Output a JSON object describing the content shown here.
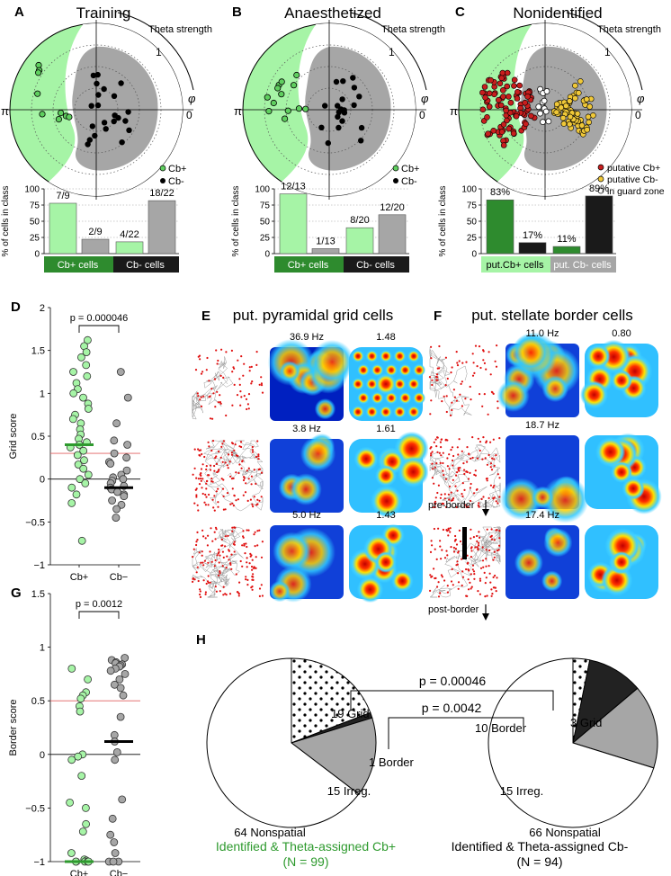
{
  "panels": {
    "A": {
      "letter": "A",
      "title": "Training",
      "theta": "Theta strength",
      "one": "1",
      "phi": "φ",
      "pi": "π",
      "zero": "0",
      "legend": [
        "Cb+",
        "Cb-"
      ],
      "ylabel": "% of cells in class",
      "bar_labels": [
        "7/9",
        "2/9",
        "4/22",
        "18/22"
      ],
      "groups": [
        "Cb+ cells",
        "Cb- cells"
      ]
    },
    "B": {
      "letter": "B",
      "title": "Anaesthetized",
      "theta": "Theta strength",
      "one": "1",
      "phi": "φ",
      "pi": "π",
      "zero": "0",
      "legend": [
        "Cb+",
        "Cb-"
      ],
      "ylabel": "% of cells in class",
      "bar_labels": [
        "12/13",
        "1/13",
        "8/20",
        "12/20"
      ],
      "groups": [
        "Cb+ cells",
        "Cb- cells"
      ]
    },
    "C": {
      "letter": "C",
      "title": "Nonidentified",
      "theta": "Theta strength",
      "one": "1",
      "phi": "φ",
      "pi": "π",
      "zero": "0",
      "legend": [
        "putative Cb+",
        "putative Cb-",
        "in guard zone"
      ],
      "ylabel": "% of cells in class",
      "bar_labels": [
        "83%",
        "17%",
        "11%",
        "89%"
      ],
      "groups": [
        "put.Cb+ cells",
        "put. Cb- cells"
      ]
    },
    "D": {
      "letter": "D",
      "ylabel": "Grid score",
      "pval": "p = 0.000046",
      "xcats": [
        "Cb+",
        "Cb−"
      ],
      "yticks": [
        "2",
        "1.5",
        "1",
        "0.5",
        "0",
        "−0.5",
        "−1"
      ]
    },
    "E": {
      "letter": "E",
      "title": "put. pyramidal grid cells",
      "rows": [
        {
          "hz": "36.9 Hz",
          "score": "1.48"
        },
        {
          "hz": "3.8 Hz",
          "score": "1.61"
        },
        {
          "hz": "5.0 Hz",
          "score": "1.43"
        }
      ]
    },
    "F": {
      "letter": "F",
      "title": "put. stellate border cells",
      "pre": "pre-border",
      "post": "post-border",
      "rows": [
        {
          "hz": "11.0 Hz",
          "score": "0.80"
        },
        {
          "hz": "18.7 Hz",
          "score": ""
        },
        {
          "hz": "17.4 Hz",
          "score": ""
        }
      ]
    },
    "G": {
      "letter": "G",
      "ylabel": "Border score",
      "pval": "p = 0.0012",
      "xcats": [
        "Cb+",
        "Cb−"
      ],
      "yticks": [
        "1.5",
        "1",
        "0.5",
        "0",
        "−0.5",
        "−1"
      ]
    },
    "H": {
      "letter": "H",
      "p1": "p = 0.00046",
      "p2": "p = 0.0042",
      "left": {
        "grid": "19 Grid",
        "border": "1 Border",
        "irreg": "15 Irreg.",
        "non": "64 Nonspatial",
        "caption": "Identified & Theta-assigned Cb+",
        "n": "(N = 99)"
      },
      "right": {
        "grid": "3 Grid",
        "border": "10 Border",
        "irreg": "15 Irreg.",
        "non": "66 Nonspatial",
        "caption": "Identified & Theta-assigned Cb-",
        "n": "(N = 94)"
      }
    }
  },
  "chart_data": [
    {
      "type": "bar",
      "panel": "A",
      "categories": [
        "Cb+ grid",
        "Cb+ other",
        "Cb- grid",
        "Cb- other"
      ],
      "values": [
        77.8,
        22.2,
        18.2,
        81.8
      ],
      "ylim": [
        0,
        100
      ],
      "yticks": [
        0,
        25,
        50,
        75,
        100
      ]
    },
    {
      "type": "bar",
      "panel": "B",
      "categories": [
        "Cb+ a",
        "Cb+ b",
        "Cb- a",
        "Cb- b"
      ],
      "values": [
        92.3,
        7.7,
        40,
        60
      ],
      "ylim": [
        0,
        100
      ],
      "yticks": [
        0,
        25,
        50,
        75,
        100
      ]
    },
    {
      "type": "bar",
      "panel": "C",
      "categories": [
        "put.Cb+ a",
        "put.Cb+ b",
        "put.Cb- a",
        "put.Cb- b"
      ],
      "values": [
        83,
        17,
        11,
        89
      ],
      "ylim": [
        0,
        100
      ],
      "yticks": [
        0,
        25,
        50,
        75,
        100
      ]
    },
    {
      "type": "scatter",
      "panel": "D",
      "ylim": [
        -1,
        2
      ],
      "threshold": 0.3,
      "series": [
        {
          "name": "Cb+",
          "median": 0.4,
          "values": [
            1.62,
            1.55,
            1.48,
            1.42,
            1.33,
            1.25,
            1.2,
            1.12,
            1.05,
            1.0,
            0.95,
            0.88,
            0.82,
            0.75,
            0.7,
            0.65,
            0.58,
            0.52,
            0.47,
            0.43,
            0.4,
            0.37,
            0.33,
            0.28,
            0.22,
            0.17,
            0.12,
            0.05,
            0.0,
            -0.05,
            -0.1,
            -0.18,
            -0.28,
            -0.72
          ]
        },
        {
          "name": "Cb−",
          "median": -0.1,
          "values": [
            1.25,
            0.95,
            0.65,
            0.45,
            0.4,
            0.3,
            0.25,
            0.2,
            0.18,
            0.1,
            0.05,
            0.02,
            0.0,
            -0.02,
            -0.05,
            -0.08,
            -0.1,
            -0.12,
            -0.15,
            -0.18,
            -0.2,
            -0.25,
            -0.3,
            -0.35,
            -0.45
          ]
        }
      ]
    },
    {
      "type": "scatter",
      "panel": "G",
      "ylim": [
        -1,
        1.5
      ],
      "threshold": 0.5,
      "series": [
        {
          "name": "Cb+",
          "median": -1.0,
          "values": [
            0.8,
            0.7,
            0.58,
            0.55,
            0.52,
            0.45,
            0.4,
            0.0,
            -0.02,
            -0.05,
            -0.2,
            -0.45,
            -0.5,
            -0.65,
            -0.72,
            -0.92,
            -0.98,
            -0.99,
            -1.0,
            -1.0,
            -1.0,
            -1.0,
            -1.0
          ]
        },
        {
          "name": "Cb−",
          "median": 0.12,
          "values": [
            0.9,
            0.88,
            0.86,
            0.85,
            0.84,
            0.83,
            0.82,
            0.8,
            0.78,
            0.75,
            0.7,
            0.65,
            0.62,
            0.55,
            0.35,
            0.18,
            0.12,
            0.02,
            -0.05,
            -0.42,
            -0.6,
            -0.75,
            -0.82,
            -0.92,
            -1.0,
            -1.0,
            -1.0
          ]
        }
      ]
    },
    {
      "type": "pie",
      "panel": "H-left",
      "categories": [
        "Grid",
        "Border",
        "Irreg.",
        "Nonspatial"
      ],
      "values": [
        19,
        1,
        15,
        64
      ]
    },
    {
      "type": "pie",
      "panel": "H-right",
      "categories": [
        "Grid",
        "Border",
        "Irreg.",
        "Nonspatial"
      ],
      "values": [
        3,
        10,
        15,
        66
      ]
    }
  ]
}
